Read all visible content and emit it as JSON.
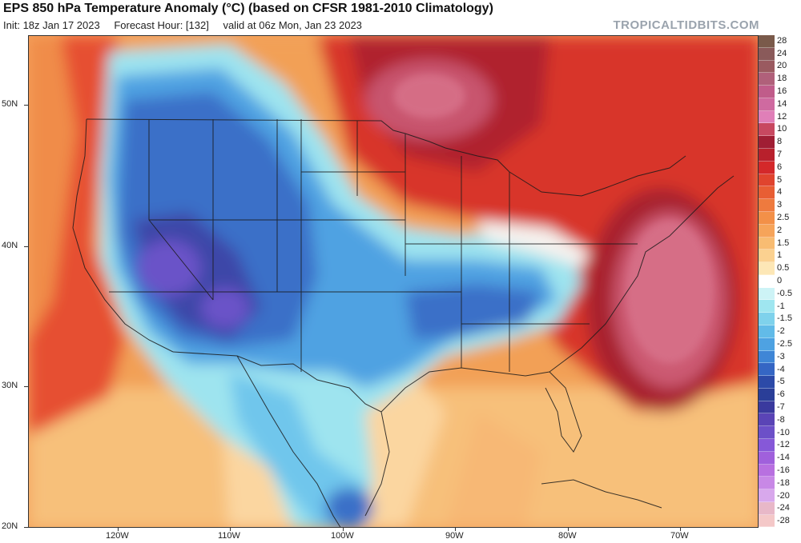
{
  "header": {
    "title": "EPS 850 hPa Temperature Anomaly (°C) (based on CFSR 1981-2010 Climatology)",
    "init": "Init: 18z Jan 17 2023",
    "forecast_hour": "Forecast Hour: [132]",
    "valid": "valid at 06z Mon, Jan 23 2023",
    "brand": "TROPICALTIDBITS.COM"
  },
  "axes": {
    "lat_labels": [
      "50N",
      "40N",
      "30N",
      "20N"
    ],
    "lon_labels": [
      "120W",
      "110W",
      "100W",
      "90W",
      "80W",
      "70W"
    ]
  },
  "colorbar": {
    "labels": [
      "28",
      "24",
      "20",
      "18",
      "16",
      "14",
      "12",
      "10",
      "8",
      "7",
      "6",
      "5",
      "4",
      "3",
      "2.5",
      "2",
      "1.5",
      "1",
      "0.5",
      "0",
      "-0.5",
      "-1",
      "-1.5",
      "-2",
      "-2.5",
      "-3",
      "-4",
      "-5",
      "-6",
      "-7",
      "-8",
      "-10",
      "-12",
      "-14",
      "-16",
      "-18",
      "-20",
      "-24",
      "-28"
    ],
    "colors": [
      "#7a5a4a",
      "#8a5a5a",
      "#9a5a60",
      "#b0607a",
      "#c05c8a",
      "#cf6aa0",
      "#e07fb8",
      "#c84860",
      "#a01e34",
      "#b8202c",
      "#d4282a",
      "#e0442e",
      "#e85e34",
      "#ee7a3e",
      "#f39048",
      "#f6a45a",
      "#f8bc72",
      "#fbd190",
      "#fde7b6",
      "#ffffff",
      "#cdf3f6",
      "#9fe6f0",
      "#7fd2ec",
      "#62bbe8",
      "#4ea2e2",
      "#3f86d6",
      "#3566c4",
      "#2c4aa8",
      "#2a3e98",
      "#3a3a9e",
      "#5a44b6",
      "#6c50c8",
      "#8658d8",
      "#a060dc",
      "#b870e0",
      "#c888e6",
      "#d8a8ec",
      "#e8b8c8",
      "#f4c8c8"
    ]
  }
}
